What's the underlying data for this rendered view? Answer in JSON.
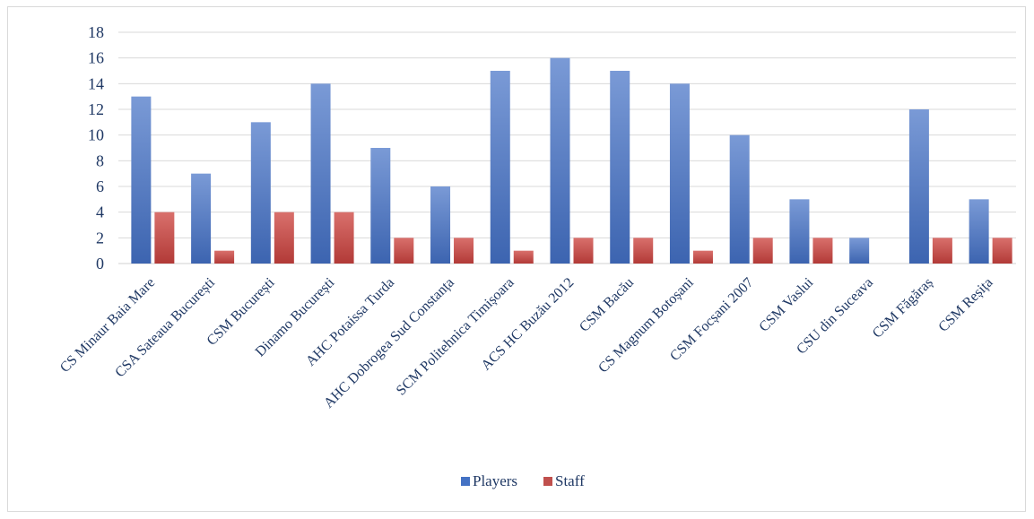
{
  "chart_data": {
    "type": "bar",
    "title": "",
    "xlabel": "",
    "ylabel": "",
    "ylim": [
      0,
      18
    ],
    "yticks": [
      0,
      2,
      4,
      6,
      8,
      10,
      12,
      14,
      16,
      18
    ],
    "grid": true,
    "legend_position": "bottom",
    "categories": [
      "CS Minaur Baia Mare",
      "CSA Sateaua București",
      "CSM București",
      "Dinamo București",
      "AHC Potaissa Turda",
      "AHC Dobrogea Sud Constanța",
      "SCM Politehnica  Timișoara",
      "ACS HC Buzău  2012",
      "CSM Bacău",
      "CS Magnum Botoșani",
      "CSM Focșani 2007",
      "CSM Vaslui",
      "CSU din Suceava",
      "CSM Făgăraș",
      "CSM Reșița"
    ],
    "series": [
      {
        "name": "Players",
        "color": "#4472c4",
        "values": [
          13,
          7,
          11,
          14,
          9,
          6,
          15,
          16,
          15,
          14,
          10,
          5,
          2,
          12,
          5
        ]
      },
      {
        "name": "Staff",
        "color": "#c0504d",
        "values": [
          4,
          1,
          4,
          4,
          2,
          2,
          1,
          2,
          2,
          1,
          2,
          2,
          0,
          2,
          2
        ]
      }
    ]
  }
}
